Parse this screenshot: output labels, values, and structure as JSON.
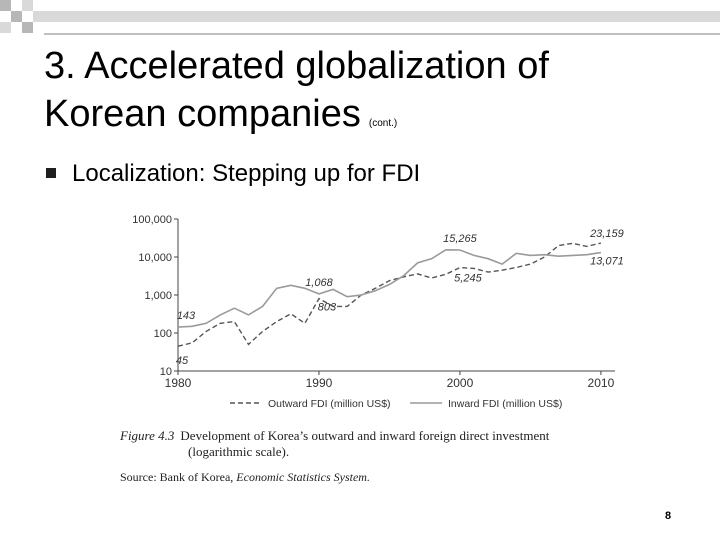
{
  "slide": {
    "title_line1": "3. Accelerated globalization of",
    "title_line2": "Korean companies",
    "title_cont": "(cont.)",
    "bullet": "Localization: Stepping up for FDI",
    "page_number": "8",
    "colors": {
      "deco_square": "#b7b7b7",
      "deco_light": "#d9d9d9",
      "rule": "#7f7f7f"
    }
  },
  "figure": {
    "number": "Figure 4.3",
    "caption_line1": "Development of Korea’s outward and inward foreign direct investment",
    "caption_line2": "(logarithmic scale).",
    "source_prefix": "Source: Bank of Korea,",
    "source_italic": "Economic Statistics System."
  },
  "chart_data": {
    "type": "line",
    "yscale": "log",
    "ylim": [
      10,
      100000
    ],
    "xlim": [
      1980,
      2011
    ],
    "yticks": [
      {
        "value": 100000,
        "label": "100,000"
      },
      {
        "value": 10000,
        "label": "10,000"
      },
      {
        "value": 1000,
        "label": "1,000"
      },
      {
        "value": 100,
        "label": "100"
      },
      {
        "value": 10,
        "label": "10"
      }
    ],
    "xticks": [
      {
        "value": 1980,
        "label": "1980"
      },
      {
        "value": 1990,
        "label": "1990"
      },
      {
        "value": 2000,
        "label": "2000"
      },
      {
        "value": 2010,
        "label": "2010"
      }
    ],
    "series": [
      {
        "name": "Outward FDI (million US$)",
        "style": "dashed",
        "color": "#555555",
        "x": [
          1980,
          1981,
          1982,
          1983,
          1984,
          1985,
          1986,
          1987,
          1988,
          1989,
          1990,
          1991,
          1992,
          1993,
          1994,
          1995,
          1996,
          1997,
          1998,
          1999,
          2000,
          2001,
          2002,
          2003,
          2004,
          2005,
          2006,
          2007,
          2008,
          2009,
          2010
        ],
        "y": [
          45,
          55,
          110,
          180,
          200,
          50,
          110,
          200,
          320,
          180,
          803,
          500,
          500,
          1000,
          1500,
          2400,
          3000,
          3600,
          2800,
          3500,
          5245,
          5000,
          4000,
          4500,
          5300,
          6500,
          10000,
          20000,
          23000,
          19000,
          23159
        ]
      },
      {
        "name": "Inward FDI (million US$)",
        "style": "solid",
        "color": "#9a9a9a",
        "x": [
          1980,
          1981,
          1982,
          1983,
          1984,
          1985,
          1986,
          1987,
          1988,
          1989,
          1990,
          1991,
          1992,
          1993,
          1994,
          1995,
          1996,
          1997,
          1998,
          1999,
          2000,
          2001,
          2002,
          2003,
          2004,
          2005,
          2006,
          2007,
          2008,
          2009,
          2010
        ],
        "y": [
          143,
          150,
          180,
          300,
          450,
          300,
          500,
          1500,
          1800,
          1500,
          1068,
          1400,
          900,
          1000,
          1300,
          1900,
          3200,
          7000,
          9000,
          15500,
          15265,
          11000,
          9000,
          6500,
          12500,
          11000,
          11500,
          10500,
          11000,
          11500,
          13071
        ]
      }
    ],
    "annotations": [
      {
        "label": "143",
        "x": 1980,
        "y": 143
      },
      {
        "label": "45",
        "x": 1980,
        "y": 45
      },
      {
        "label": "1,068",
        "x": 1990,
        "y": 1068
      },
      {
        "label": "803",
        "x": 1990,
        "y": 803
      },
      {
        "label": "15,265",
        "x": 2000,
        "y": 15265
      },
      {
        "label": "5,245",
        "x": 2000,
        "y": 5245
      },
      {
        "label": "23,159",
        "x": 2010,
        "y": 23159
      },
      {
        "label": "13,071",
        "x": 2010,
        "y": 13071
      }
    ],
    "legend_position": "bottom",
    "grid": false
  }
}
